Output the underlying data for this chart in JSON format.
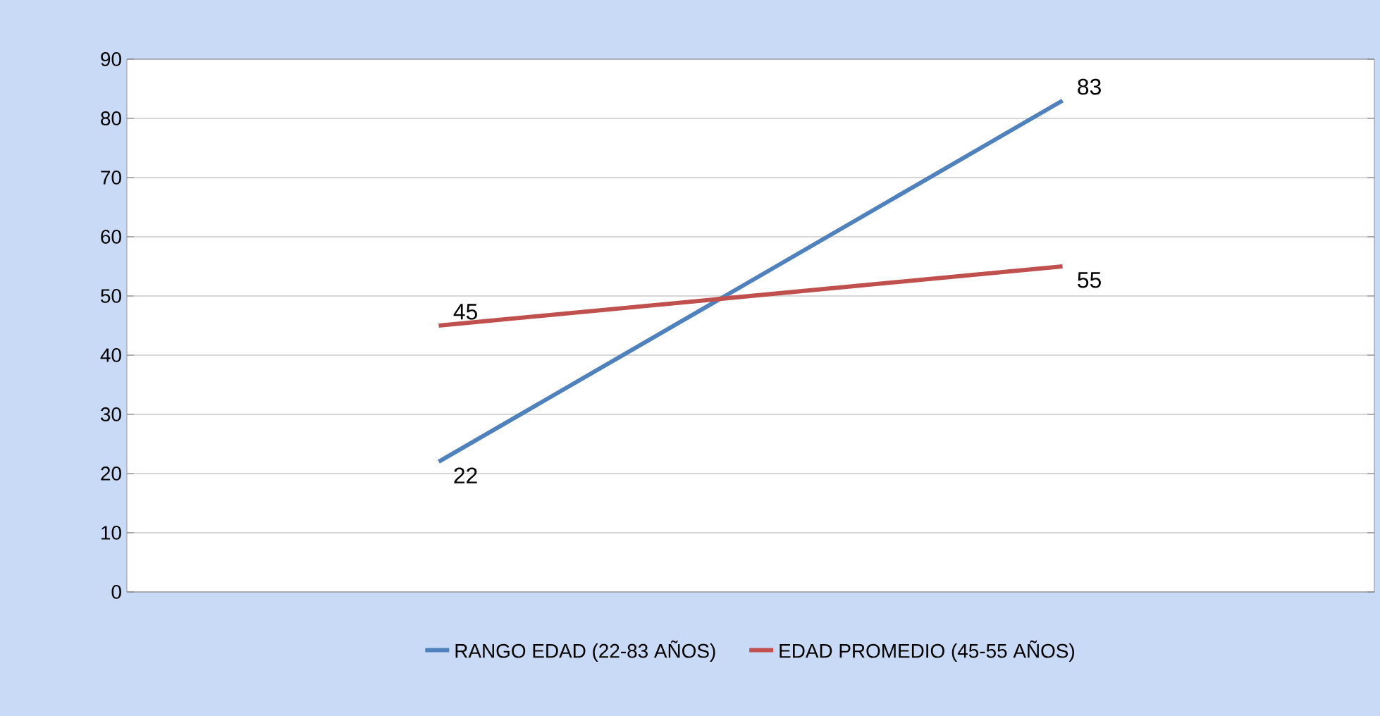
{
  "chart_data": {
    "type": "line",
    "categories": [
      null,
      null
    ],
    "series": [
      {
        "name": "RANGO EDAD (22-83 AÑOS)",
        "color": "#4f81bd",
        "values": [
          22,
          83
        ]
      },
      {
        "name": "EDAD PROMEDIO (45-55 AÑOS)",
        "color": "#c0504d",
        "values": [
          45,
          55
        ]
      }
    ],
    "ylim": [
      0,
      90
    ],
    "yticks": [
      0,
      10,
      20,
      30,
      40,
      50,
      60,
      70,
      80,
      90
    ],
    "grid": "y",
    "legend": "bottom",
    "data_labels": true,
    "marker": "none",
    "line_style": "solid"
  }
}
